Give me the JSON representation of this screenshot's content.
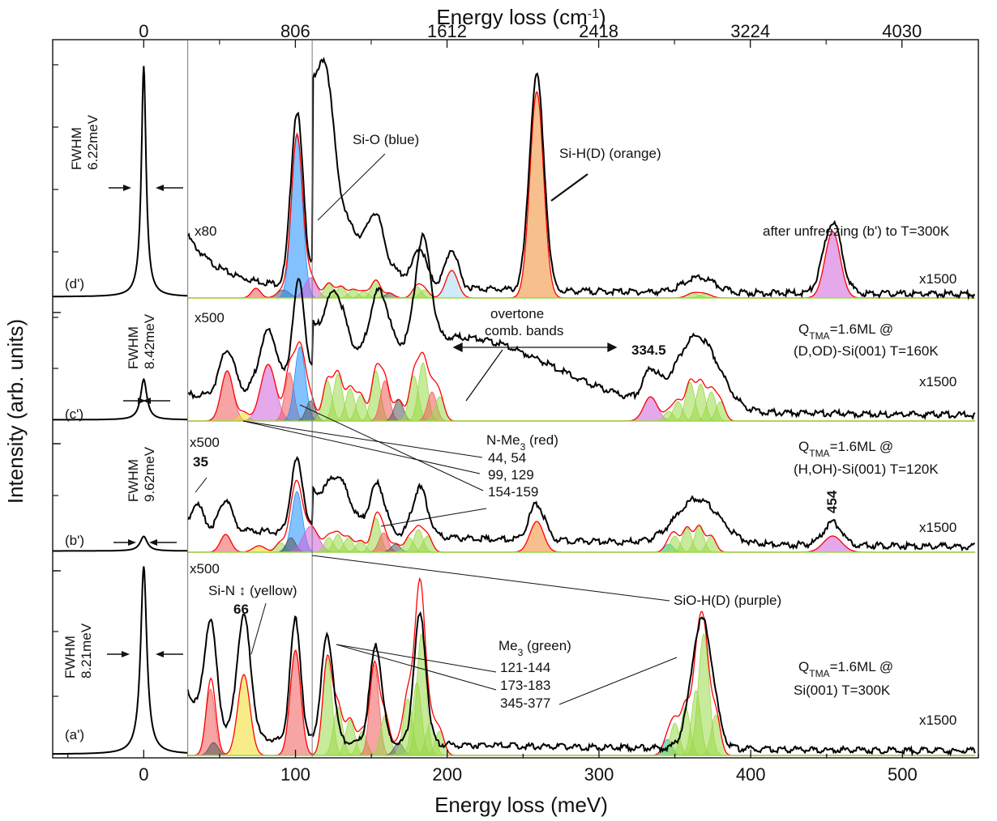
{
  "chart_data": {
    "type": "line",
    "title": "",
    "xlabel": "Energy loss (meV)",
    "x2label": "Energy loss (cm-1)",
    "ylabel": "Intensity (arb. units)",
    "xlim": [
      -60,
      550
    ],
    "xticks": [
      "0",
      "100",
      "200",
      "300",
      "400",
      "500"
    ],
    "x2ticks": [
      "0",
      "806",
      "1612",
      "2418",
      "3224",
      "4030"
    ],
    "x2tick_values_cm": [
      0,
      806,
      1612,
      2418,
      3224,
      4030
    ],
    "vertical_lines_mev": [
      29,
      111
    ],
    "panels": [
      {
        "label": "(d')",
        "condition": "after unfreezing (b') to T=300K",
        "elastic_fwhm": "FWHM\n6.22meV",
        "fwhm_line1": "FWHM",
        "fwhm_line2": "6.22meV",
        "gain_low": "x80",
        "gain_high": "x1500",
        "elastic_peak_height": 1.0,
        "peaks_mev": [
          101,
          120,
          153,
          182,
          203,
          259,
          365,
          454
        ]
      },
      {
        "label": "(c')",
        "condition_line1": "QTMA=1.6ML @",
        "condition_line2": "(D,OD)-Si(001) T=160K",
        "fwhm_line1": "FWHM",
        "fwhm_line2": "8.42meV",
        "gain_low": "x500",
        "gain_high": "x1500",
        "elastic_peak_height": 0.28,
        "peaks_mev": [
          55,
          82,
          102,
          128,
          153,
          184,
          212,
          334.5,
          367
        ]
      },
      {
        "label": "(b')",
        "condition_line1": "QTMA=1.6ML @",
        "condition_line2": "(H,OH)-Si(001) T=120K",
        "fwhm_line1": "FWHM",
        "fwhm_line2": "9.62meV",
        "gain_low": "x500",
        "gain_high": "x1500",
        "elastic_peak_height": 0.1,
        "peaks_mev": [
          35,
          54,
          101,
          128,
          154,
          182,
          259,
          365,
          454
        ]
      },
      {
        "label": "(a')",
        "condition_line1": "QTMA=1.6ML @",
        "condition_line2": "Si(001) T=300K",
        "fwhm_line1": "FWHM",
        "fwhm_line2": "8.21meV",
        "gain_low": "x500",
        "gain_high": "x1500",
        "elastic_peak_height": 1.0,
        "peaks_mev": [
          44,
          66,
          100,
          121,
          153,
          182,
          368
        ]
      }
    ],
    "annotations": {
      "si_o": "Si-O (blue)",
      "si_hd": "Si-H(D) (orange)",
      "overtone_1": "overtone",
      "overtone_2": "comb. bands",
      "peak_3345": "334.5",
      "n_me3": "N-Me3 (red)",
      "n_me3_values_1": "44, 54",
      "n_me3_values_2": "99, 129",
      "n_me3_values_3": "154-159",
      "peak_35": "35",
      "peak_454": "454",
      "sio_hd": "SiO-H(D) (purple)",
      "si_n": "Si-N ↕ (yellow)",
      "peak_66": "66",
      "me3": "Me3 (green)",
      "me3_values_1": "121-144",
      "me3_values_2": "173-183",
      "me3_values_3": "345-377"
    },
    "colors": {
      "measured": "#000000",
      "fit_envelope": "#ff0000",
      "si_o": "#1e90ff",
      "si_hd": "#f08a2c",
      "n_me3": "#f05a5a",
      "sio_hd": "#d060d8",
      "si_n": "#f2dc28",
      "me3": "#9ad848",
      "silicon_dark": "#555555",
      "teal": "#20c0a0"
    }
  }
}
